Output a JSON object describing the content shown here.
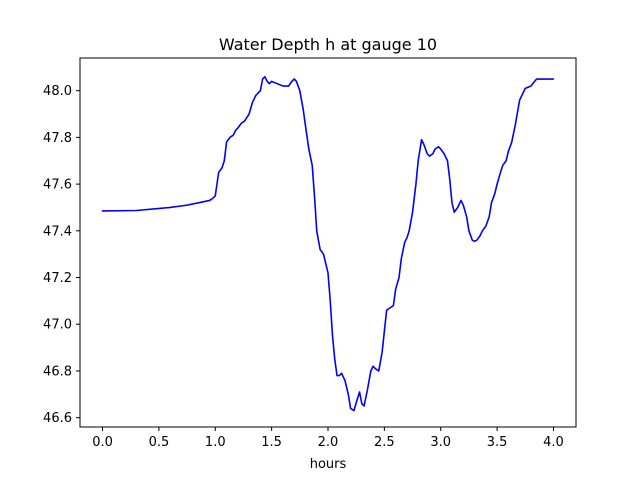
{
  "chart_data": {
    "type": "line",
    "title": "Water Depth h at gauge 10",
    "xlabel": "hours",
    "ylabel": "",
    "xlim": [
      -0.2,
      4.2
    ],
    "ylim": [
      46.56,
      48.14
    ],
    "x_ticks": [
      0.0,
      0.5,
      1.0,
      1.5,
      2.0,
      2.5,
      3.0,
      3.5,
      4.0
    ],
    "x_tick_labels": [
      "0.0",
      "0.5",
      "1.0",
      "1.5",
      "2.0",
      "2.5",
      "3.0",
      "3.5",
      "4.0"
    ],
    "y_ticks": [
      46.6,
      46.8,
      47.0,
      47.2,
      47.4,
      47.6,
      47.8,
      48.0
    ],
    "y_tick_labels": [
      "46.6",
      "46.8",
      "47.0",
      "47.2",
      "47.4",
      "47.6",
      "47.8",
      "48.0"
    ],
    "grid": false,
    "series": [
      {
        "color": "#0000ff",
        "x": [
          0.0,
          0.3,
          0.6,
          0.75,
          0.85,
          0.95,
          0.98,
          1.0,
          1.03,
          1.06,
          1.08,
          1.1,
          1.13,
          1.16,
          1.18,
          1.2,
          1.23,
          1.26,
          1.3,
          1.33,
          1.36,
          1.38,
          1.4,
          1.42,
          1.44,
          1.46,
          1.48,
          1.5,
          1.55,
          1.6,
          1.65,
          1.68,
          1.7,
          1.72,
          1.75,
          1.78,
          1.8,
          1.83,
          1.86,
          1.88,
          1.9,
          1.93,
          1.96,
          2.0,
          2.02,
          2.04,
          2.06,
          2.08,
          2.1,
          2.12,
          2.15,
          2.18,
          2.2,
          2.23,
          2.26,
          2.28,
          2.3,
          2.32,
          2.35,
          2.38,
          2.4,
          2.42,
          2.45,
          2.48,
          2.5,
          2.52,
          2.55,
          2.58,
          2.6,
          2.63,
          2.65,
          2.68,
          2.7,
          2.72,
          2.75,
          2.78,
          2.8,
          2.83,
          2.85,
          2.88,
          2.9,
          2.93,
          2.95,
          2.98,
          3.0,
          3.03,
          3.06,
          3.08,
          3.1,
          3.12,
          3.15,
          3.18,
          3.2,
          3.23,
          3.25,
          3.28,
          3.3,
          3.32,
          3.35,
          3.37,
          3.4,
          3.43,
          3.45,
          3.48,
          3.5,
          3.53,
          3.55,
          3.58,
          3.6,
          3.63,
          3.66,
          3.7,
          3.75,
          3.8,
          3.85,
          3.9,
          3.93,
          3.96,
          4.0
        ],
        "y": [
          47.485,
          47.487,
          47.5,
          47.51,
          47.52,
          47.53,
          47.54,
          47.55,
          47.65,
          47.67,
          47.7,
          47.78,
          47.8,
          47.81,
          47.83,
          47.84,
          47.86,
          47.87,
          47.9,
          47.95,
          47.98,
          47.99,
          48.0,
          48.05,
          48.06,
          48.04,
          48.03,
          48.04,
          48.03,
          48.02,
          48.02,
          48.04,
          48.05,
          48.04,
          48.0,
          47.92,
          47.85,
          47.75,
          47.68,
          47.55,
          47.4,
          47.32,
          47.3,
          47.22,
          47.1,
          46.95,
          46.85,
          46.78,
          46.78,
          46.79,
          46.76,
          46.7,
          46.64,
          46.63,
          46.68,
          46.71,
          46.66,
          46.65,
          46.72,
          46.8,
          46.82,
          46.81,
          46.8,
          46.88,
          46.97,
          47.06,
          47.07,
          47.08,
          47.15,
          47.2,
          47.28,
          47.35,
          47.37,
          47.4,
          47.48,
          47.6,
          47.7,
          47.79,
          47.77,
          47.73,
          47.72,
          47.73,
          47.75,
          47.76,
          47.75,
          47.73,
          47.7,
          47.62,
          47.52,
          47.48,
          47.5,
          47.53,
          47.51,
          47.46,
          47.4,
          47.36,
          47.355,
          47.36,
          47.38,
          47.4,
          47.42,
          47.46,
          47.52,
          47.56,
          47.6,
          47.65,
          47.68,
          47.7,
          47.74,
          47.78,
          47.85,
          47.96,
          48.01,
          48.02,
          48.05,
          48.05,
          48.05,
          48.05,
          48.05
        ]
      }
    ]
  }
}
